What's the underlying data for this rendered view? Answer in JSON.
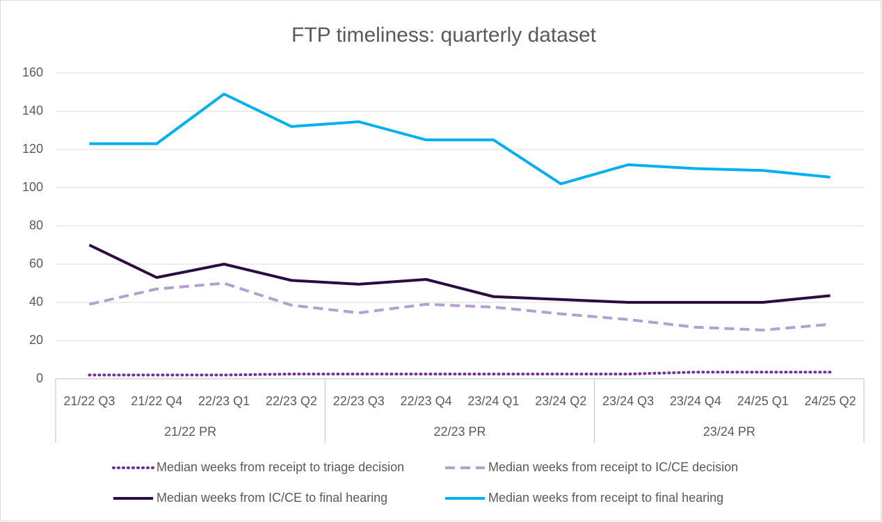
{
  "chart_data": {
    "type": "line",
    "title": "FTP timeliness: quarterly dataset",
    "categories": [
      "21/22 Q3",
      "21/22 Q4",
      "22/23 Q1",
      "22/23 Q2",
      "22/23 Q3",
      "22/23 Q4",
      "23/24 Q1",
      "23/24 Q2",
      "23/24 Q3",
      "23/24 Q4",
      "24/25 Q1",
      "24/25 Q2"
    ],
    "group_labels": [
      "21/22 PR",
      "22/23 PR",
      "23/24 PR"
    ],
    "series": [
      {
        "name": "Median weeks from receipt to triage decision",
        "color": "#7030a0",
        "dash": "dotted",
        "values": [
          2,
          2,
          2,
          2.5,
          2.5,
          2.5,
          2.5,
          2.5,
          2.5,
          3.5,
          3.5,
          3.5
        ]
      },
      {
        "name": "Median weeks from receipt to IC/CE decision",
        "color": "#b4a0d0",
        "dash": "dashed",
        "values": [
          39,
          47,
          50,
          38.5,
          34.5,
          39,
          37.5,
          34,
          31,
          27,
          25.5,
          28.5
        ]
      },
      {
        "name": "Median weeks from IC/CE to final hearing",
        "color": "#2a0d3f",
        "dash": "solid",
        "values": [
          70,
          53,
          60,
          51.5,
          49.5,
          52,
          43,
          41.5,
          40,
          40,
          40,
          43.5
        ]
      },
      {
        "name": "Median weeks from receipt to final hearing",
        "color": "#00b0f0",
        "dash": "solid",
        "values": [
          123,
          123,
          149,
          132,
          134.5,
          125,
          125,
          102,
          112,
          110,
          109,
          105.5
        ]
      }
    ],
    "ylim": [
      0,
      160
    ],
    "yticks": [
      0,
      20,
      40,
      60,
      80,
      100,
      120,
      140,
      160
    ],
    "grid": true,
    "legend": "bottom"
  }
}
